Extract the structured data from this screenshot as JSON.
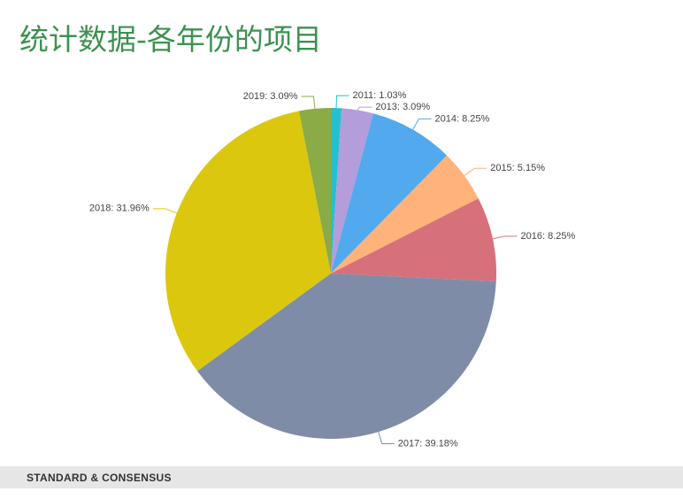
{
  "title": "统计数据-各年份的项目",
  "footer": "STANDARD & CONSENSUS",
  "chart_data": {
    "type": "pie",
    "categories": [
      "2011",
      "2013",
      "2014",
      "2015",
      "2016",
      "2017",
      "2018",
      "2019"
    ],
    "values": [
      1.03,
      3.09,
      8.25,
      5.15,
      8.25,
      39.18,
      31.96,
      3.09
    ],
    "value_labels": [
      "2011: 1.03%",
      "2013: 3.09%",
      "2014: 8.25%",
      "2015: 5.15%",
      "2016: 8.25%",
      "2017: 39.18%",
      "2018: 31.96%",
      "2019: 3.09%"
    ],
    "colors": [
      "#26c0cc",
      "#b39ddb",
      "#52a9ee",
      "#ffb27a",
      "#d6707a",
      "#7f8ca8",
      "#dcc70f",
      "#8aab45"
    ]
  }
}
